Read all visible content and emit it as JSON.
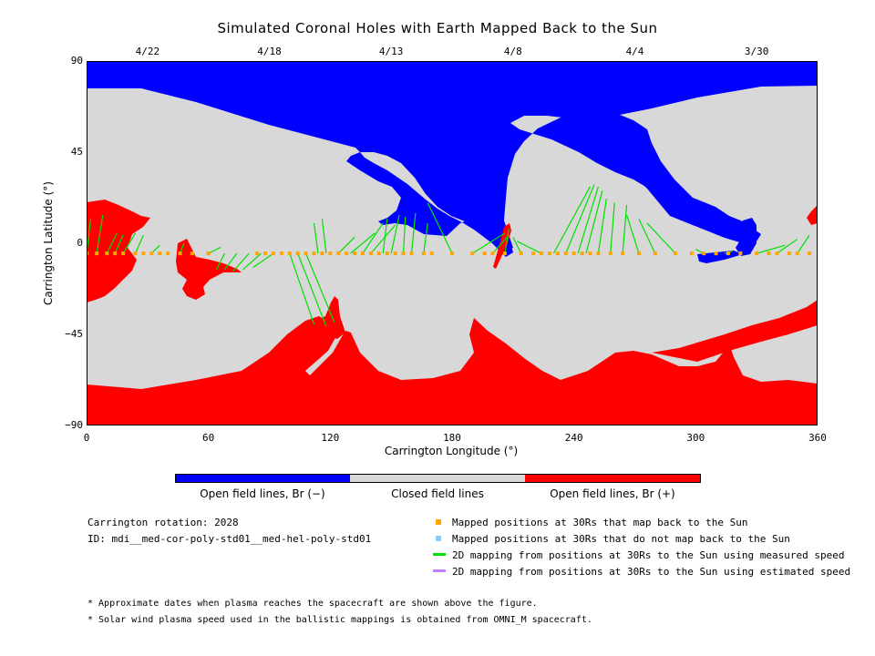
{
  "title": "Simulated Coronal Holes with Earth Mapped Back to the Sun",
  "colors": {
    "open_negative": "#0000ff",
    "closed": "#d8d8d8",
    "open_positive": "#ff0000",
    "mapped": "#ffa500",
    "not_mapped": "#87cefa",
    "measured_line": "#00e000",
    "estimated_line": "#c080ff"
  },
  "chart_data": {
    "type": "heatmap",
    "title": "Simulated Coronal Holes with Earth Mapped Back to the Sun",
    "xlabel": "Carrington Longitude (°)",
    "ylabel": "Carrington Latitude (°)",
    "xlim": [
      0,
      360
    ],
    "ylim": [
      -90,
      90
    ],
    "x_ticks": [
      "0",
      "60",
      "120",
      "180",
      "240",
      "300",
      "360"
    ],
    "y_ticks": [
      "90",
      "45",
      "0",
      "−45",
      "−90"
    ],
    "top_axis_dates": [
      {
        "label": "4/22",
        "lon": 30
      },
      {
        "label": "4/18",
        "lon": 90
      },
      {
        "label": "4/13",
        "lon": 150
      },
      {
        "label": "4/8",
        "lon": 210
      },
      {
        "label": "4/4",
        "lon": 270
      },
      {
        "label": "3/30",
        "lon": 330
      }
    ],
    "colorbar": [
      {
        "label": "Open field lines, Br (−)",
        "color": "#0000ff"
      },
      {
        "label": "Closed field lines",
        "color": "#d8d8d8"
      },
      {
        "label": "Open field lines, Br (+)",
        "color": "#ff0000"
      }
    ],
    "mapping_lines": [
      [
        0,
        -5,
        2,
        12
      ],
      [
        5,
        -5,
        8,
        14
      ],
      [
        10,
        -5,
        15,
        5
      ],
      [
        14,
        -5,
        18,
        4
      ],
      [
        18,
        -5,
        24,
        5
      ],
      [
        24,
        -5,
        28,
        4
      ],
      [
        32,
        -5,
        36,
        -1
      ],
      [
        46,
        -5,
        48,
        0
      ],
      [
        60,
        -5,
        66,
        -2
      ],
      [
        68,
        -5,
        64,
        -13
      ],
      [
        74,
        -5,
        68,
        -13
      ],
      [
        80,
        -5,
        72,
        -14
      ],
      [
        86,
        -5,
        77,
        -13
      ],
      [
        92,
        -5,
        82,
        -12
      ],
      [
        100,
        -5,
        112,
        -40
      ],
      [
        104,
        -5,
        118,
        -41
      ],
      [
        108,
        -5,
        122,
        -39
      ],
      [
        114,
        -5,
        112,
        10
      ],
      [
        118,
        -5,
        116,
        12
      ],
      [
        124,
        -5,
        132,
        3
      ],
      [
        130,
        -5,
        142,
        5
      ],
      [
        136,
        -5,
        146,
        10
      ],
      [
        140,
        -5,
        152,
        9
      ],
      [
        146,
        -5,
        148,
        12
      ],
      [
        150,
        -5,
        154,
        14
      ],
      [
        156,
        -5,
        157,
        13
      ],
      [
        160,
        -5,
        162,
        15
      ],
      [
        166,
        -5,
        168,
        10
      ],
      [
        180,
        -5,
        168,
        20
      ],
      [
        190,
        -5,
        206,
        5
      ],
      [
        200,
        -5,
        208,
        4
      ],
      [
        206,
        -5,
        208,
        7
      ],
      [
        214,
        -5,
        210,
        3
      ],
      [
        224,
        -5,
        212,
        1
      ],
      [
        230,
        -5,
        248,
        28
      ],
      [
        236,
        -5,
        250,
        29
      ],
      [
        242,
        -5,
        252,
        28
      ],
      [
        246,
        -5,
        254,
        26
      ],
      [
        252,
        -5,
        256,
        22
      ],
      [
        258,
        -5,
        260,
        20
      ],
      [
        264,
        -5,
        266,
        19
      ],
      [
        272,
        -5,
        266,
        14
      ],
      [
        280,
        -5,
        272,
        12
      ],
      [
        290,
        -5,
        276,
        10
      ],
      [
        304,
        -5,
        300,
        -3
      ],
      [
        314,
        -5,
        318,
        -4
      ],
      [
        330,
        -5,
        344,
        -1
      ],
      [
        340,
        -5,
        350,
        2
      ],
      [
        350,
        -5,
        356,
        4
      ],
      [
        360,
        -5,
        360,
        3
      ]
    ],
    "mapped_positions_30Rs": {
      "lat": -5,
      "lon": [
        0,
        5,
        10,
        14,
        18,
        24,
        28,
        32,
        36,
        40,
        46,
        52,
        60,
        84,
        88,
        92,
        96,
        100,
        104,
        108,
        112,
        116,
        120,
        124,
        128,
        132,
        136,
        140,
        144,
        148,
        152,
        156,
        160,
        166,
        170,
        180,
        190,
        196,
        200,
        206,
        214,
        220,
        224,
        228,
        232,
        236,
        240,
        244,
        248,
        252,
        258,
        264,
        272,
        280,
        290,
        298,
        304,
        310,
        316,
        322,
        330,
        336,
        340,
        346,
        350,
        356
      ]
    }
  },
  "legend": {
    "carrington_rotation": "Carrington rotation: 2028",
    "id": "ID: mdi__med-cor-poly-std01__med-hel-poly-std01",
    "items": [
      {
        "label": "Mapped positions at 30Rs that map back to the Sun",
        "color": "#ffa500",
        "shape": "square"
      },
      {
        "label": "Mapped positions at 30Rs that do not map back to the Sun",
        "color": "#87cefa",
        "shape": "square"
      },
      {
        "label": "2D mapping from positions at 30Rs to the Sun using measured speed",
        "color": "#00e000",
        "shape": "line"
      },
      {
        "label": "2D mapping from positions at 30Rs to the Sun using estimated speed",
        "color": "#c080ff",
        "shape": "line"
      }
    ]
  },
  "notes": [
    "* Approximate dates when plasma reaches the spacecraft are shown above the figure.",
    "* Solar wind plasma speed used in the ballistic mappings is obtained from OMNI_M spacecraft."
  ]
}
